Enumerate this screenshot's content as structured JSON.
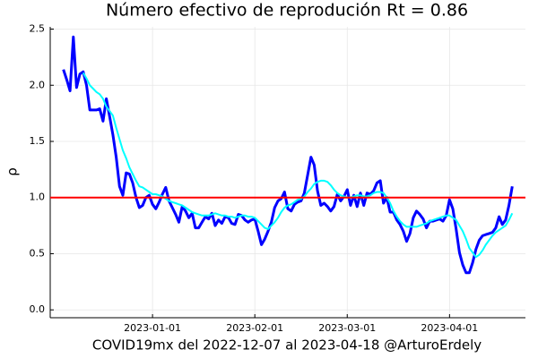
{
  "chart_data": {
    "type": "line",
    "title": "Número efectivo de reprodución  Rt = 0.86",
    "xlabel": "COVID19mx del 2022-12-07 al 2023-04-18 @ArturoErdely",
    "ylabel": "ρ",
    "x": [
      "2022-12-05",
      "2022-12-06",
      "2022-12-07",
      "2022-12-08",
      "2022-12-09",
      "2022-12-10",
      "2022-12-11",
      "2022-12-12",
      "2022-12-13",
      "2022-12-14",
      "2022-12-15",
      "2022-12-16",
      "2022-12-17",
      "2022-12-18",
      "2022-12-19",
      "2022-12-20",
      "2022-12-21",
      "2022-12-22",
      "2022-12-23",
      "2022-12-24",
      "2022-12-25",
      "2022-12-26",
      "2022-12-27",
      "2022-12-28",
      "2022-12-29",
      "2022-12-30",
      "2022-12-31",
      "2023-01-01",
      "2023-01-02",
      "2023-01-03",
      "2023-01-04",
      "2023-01-05",
      "2023-01-06",
      "2023-01-07",
      "2023-01-08",
      "2023-01-09",
      "2023-01-10",
      "2023-01-11",
      "2023-01-12",
      "2023-01-13",
      "2023-01-14",
      "2023-01-15",
      "2023-01-16",
      "2023-01-17",
      "2023-01-18",
      "2023-01-19",
      "2023-01-20",
      "2023-01-21",
      "2023-01-22",
      "2023-01-23",
      "2023-01-24",
      "2023-01-25",
      "2023-01-26",
      "2023-01-27",
      "2023-01-28",
      "2023-01-29",
      "2023-01-30",
      "2023-01-31",
      "2023-02-01",
      "2023-02-02",
      "2023-02-03",
      "2023-02-04",
      "2023-02-05",
      "2023-02-06",
      "2023-02-07",
      "2023-02-08",
      "2023-02-09",
      "2023-02-10",
      "2023-02-11",
      "2023-02-12",
      "2023-02-13",
      "2023-02-14",
      "2023-02-15",
      "2023-02-16",
      "2023-02-17",
      "2023-02-18",
      "2023-02-19",
      "2023-02-20",
      "2023-02-21",
      "2023-02-22",
      "2023-02-23",
      "2023-02-24",
      "2023-02-25",
      "2023-02-26",
      "2023-02-27",
      "2023-02-28",
      "2023-03-01",
      "2023-03-02",
      "2023-03-03",
      "2023-03-04",
      "2023-03-05",
      "2023-03-06",
      "2023-03-07",
      "2023-03-08",
      "2023-03-09",
      "2023-03-10",
      "2023-03-11",
      "2023-03-12",
      "2023-03-13",
      "2023-03-14",
      "2023-03-15",
      "2023-03-16",
      "2023-03-17",
      "2023-03-18",
      "2023-03-19",
      "2023-03-20",
      "2023-03-21",
      "2023-03-22",
      "2023-03-23",
      "2023-03-24",
      "2023-03-25",
      "2023-03-26",
      "2023-03-27",
      "2023-03-28",
      "2023-03-29",
      "2023-03-30",
      "2023-03-31",
      "2023-04-01",
      "2023-04-02",
      "2023-04-03",
      "2023-04-04",
      "2023-04-05",
      "2023-04-06",
      "2023-04-07",
      "2023-04-08",
      "2023-04-09",
      "2023-04-10",
      "2023-04-11",
      "2023-04-12",
      "2023-04-13",
      "2023-04-14",
      "2023-04-15",
      "2023-04-16",
      "2023-04-17",
      "2023-04-18",
      "2023-04-19",
      "2023-04-20"
    ],
    "series": [
      {
        "color": "#0000ff",
        "width": 3,
        "values": [
          2.14,
          2.05,
          1.95,
          2.43,
          1.98,
          2.1,
          2.12,
          2.0,
          1.78,
          1.78,
          1.78,
          1.79,
          1.68,
          1.88,
          1.72,
          1.56,
          1.36,
          1.1,
          1.02,
          1.22,
          1.21,
          1.13,
          1.0,
          0.91,
          0.93,
          1.0,
          1.02,
          0.94,
          0.9,
          0.96,
          1.03,
          1.09,
          0.97,
          0.91,
          0.85,
          0.78,
          0.92,
          0.88,
          0.82,
          0.86,
          0.73,
          0.73,
          0.78,
          0.83,
          0.81,
          0.86,
          0.75,
          0.8,
          0.77,
          0.83,
          0.82,
          0.77,
          0.76,
          0.85,
          0.84,
          0.8,
          0.78,
          0.8,
          0.81,
          0.7,
          0.58,
          0.63,
          0.7,
          0.78,
          0.91,
          0.97,
          0.99,
          1.05,
          0.9,
          0.88,
          0.94,
          0.96,
          0.97,
          1.04,
          1.2,
          1.36,
          1.29,
          1.06,
          0.93,
          0.95,
          0.92,
          0.88,
          0.92,
          1.03,
          0.97,
          1.01,
          1.07,
          0.93,
          1.02,
          0.92,
          1.04,
          0.93,
          1.04,
          1.03,
          1.06,
          1.13,
          1.15,
          0.95,
          1.0,
          0.87,
          0.87,
          0.8,
          0.76,
          0.7,
          0.61,
          0.68,
          0.82,
          0.88,
          0.85,
          0.81,
          0.73,
          0.79,
          0.79,
          0.8,
          0.81,
          0.79,
          0.84,
          0.98,
          0.9,
          0.72,
          0.51,
          0.4,
          0.33,
          0.33,
          0.42,
          0.54,
          0.62,
          0.66,
          0.67,
          0.68,
          0.69,
          0.73,
          0.83,
          0.76,
          0.8,
          0.93,
          1.1
        ]
      },
      {
        "color": "#00ffff",
        "width": 2,
        "values": [
          null,
          null,
          null,
          null,
          null,
          null,
          2.11,
          2.06,
          2.0,
          1.97,
          1.94,
          1.92,
          1.88,
          1.81,
          1.77,
          1.73,
          1.62,
          1.52,
          1.42,
          1.35,
          1.27,
          1.21,
          1.15,
          1.1,
          1.09,
          1.07,
          1.05,
          1.03,
          1.03,
          1.02,
          1.01,
          0.99,
          0.97,
          0.96,
          0.95,
          0.94,
          0.93,
          0.91,
          0.89,
          0.87,
          0.86,
          0.85,
          0.84,
          0.84,
          0.84,
          0.85,
          0.86,
          0.85,
          0.84,
          0.84,
          0.83,
          0.83,
          0.82,
          0.83,
          0.84,
          0.84,
          0.83,
          0.83,
          0.82,
          0.79,
          0.76,
          0.73,
          0.72,
          0.75,
          0.78,
          0.82,
          0.87,
          0.91,
          0.93,
          0.94,
          0.96,
          0.98,
          0.99,
          1.01,
          1.05,
          1.08,
          1.12,
          1.14,
          1.15,
          1.15,
          1.14,
          1.11,
          1.07,
          1.04,
          1.02,
          1.01,
          1.0,
          1.0,
          1.01,
          1.02,
          1.02,
          1.01,
          1.01,
          1.02,
          1.04,
          1.05,
          1.05,
          1.04,
          1.0,
          0.95,
          0.88,
          0.83,
          0.79,
          0.76,
          0.74,
          0.74,
          0.74,
          0.74,
          0.75,
          0.76,
          0.77,
          0.79,
          0.8,
          0.81,
          0.82,
          0.83,
          0.84,
          0.84,
          0.82,
          0.8,
          0.75,
          0.7,
          0.63,
          0.55,
          0.51,
          0.47,
          0.49,
          0.53,
          0.58,
          0.62,
          0.66,
          0.69,
          0.71,
          0.73,
          0.75,
          0.8,
          0.86
        ]
      }
    ],
    "hline": {
      "value": 1,
      "color": "#ff0000"
    },
    "xlim": [
      "2022-12-01",
      "2023-04-24"
    ],
    "xticks": [
      "2023-01-01",
      "2023-02-01",
      "2023-03-01",
      "2023-04-01"
    ],
    "ylim": [
      -0.07,
      2.52
    ],
    "yticks": [
      {
        "value": 0,
        "label": "0.0"
      },
      {
        "value": 0.5,
        "label": "0.5"
      },
      {
        "value": 1,
        "label": "1.0"
      },
      {
        "value": 1.5,
        "label": "1.5"
      },
      {
        "value": 2,
        "label": "2.0"
      },
      {
        "value": 2.5,
        "label": "2.5"
      }
    ],
    "grid": true
  }
}
